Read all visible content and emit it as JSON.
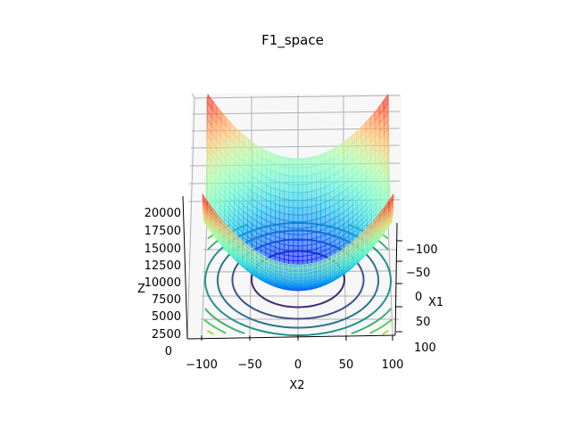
{
  "chart_data": {
    "type": "surface3d",
    "title": "F1_space",
    "function": "z = x1^2 + x2^2",
    "x1_label": "X1",
    "x2_label": "X2",
    "z_label": "Z",
    "x1_ticks": [
      "100",
      "50",
      "0",
      "−50",
      "−100"
    ],
    "x2_ticks": [
      "−100",
      "−50",
      "0",
      "50",
      "100"
    ],
    "z_ticks": [
      "0",
      "2500",
      "5000",
      "7500",
      "10000",
      "12500",
      "15000",
      "17500",
      "20000"
    ],
    "x1_range": [
      -100,
      100
    ],
    "x2_range": [
      -100,
      100
    ],
    "z_range": [
      0,
      20000
    ],
    "surface_colormap": "rainbow",
    "contour_colormap": "viridis",
    "contour_levels": [
      2500,
      5000,
      7500,
      10000,
      12500,
      15000,
      17500
    ],
    "grid": true
  }
}
